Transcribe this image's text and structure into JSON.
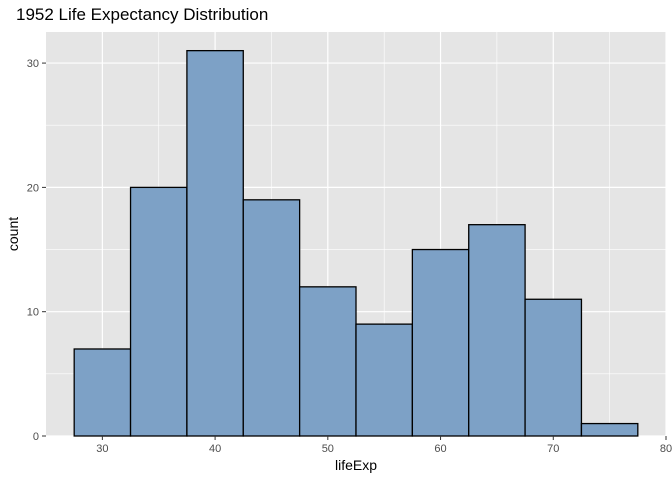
{
  "chart_data": {
    "type": "bar",
    "title": "1952 Life Expectancy Distribution",
    "xlabel": "lifeExp",
    "ylabel": "count",
    "bin_width": 5,
    "bins": [
      {
        "start": 27.5,
        "end": 32.5,
        "count": 7
      },
      {
        "start": 32.5,
        "end": 37.5,
        "count": 20
      },
      {
        "start": 37.5,
        "end": 42.5,
        "count": 31
      },
      {
        "start": 42.5,
        "end": 47.5,
        "count": 19
      },
      {
        "start": 47.5,
        "end": 52.5,
        "count": 12
      },
      {
        "start": 52.5,
        "end": 57.5,
        "count": 9
      },
      {
        "start": 57.5,
        "end": 62.5,
        "count": 15
      },
      {
        "start": 62.5,
        "end": 67.5,
        "count": 17
      },
      {
        "start": 67.5,
        "end": 72.5,
        "count": 11
      },
      {
        "start": 72.5,
        "end": 77.5,
        "count": 1
      }
    ],
    "xlim": [
      25,
      80
    ],
    "ylim": [
      0,
      32.5
    ],
    "x_ticks": [
      30,
      40,
      50,
      60,
      70,
      80
    ],
    "y_ticks": [
      0,
      10,
      20,
      30
    ],
    "grid": true,
    "colors": {
      "bar_fill": "#7da1c6",
      "bar_stroke": "#000000",
      "panel_bg": "#e5e5e5",
      "grid": "#ffffff"
    }
  }
}
